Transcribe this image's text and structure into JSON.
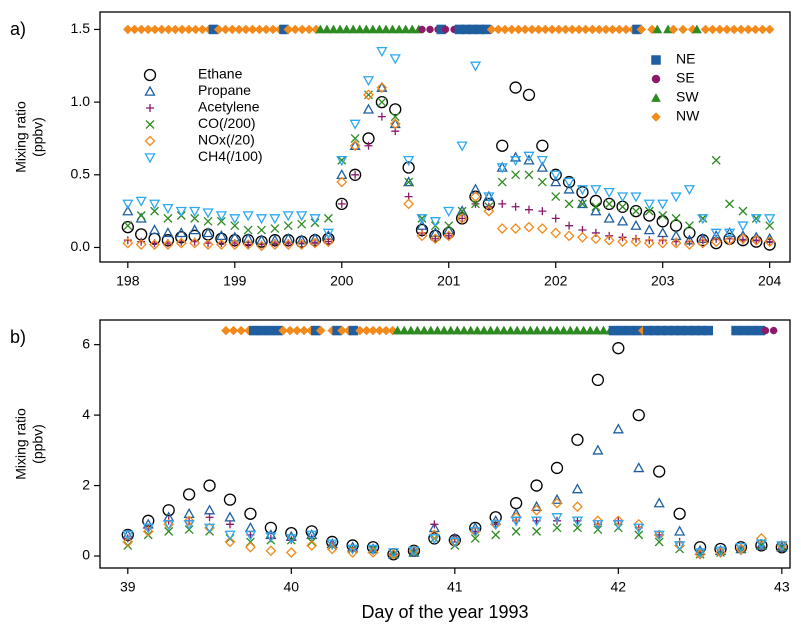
{
  "chart_data": [
    {
      "type": "scatter",
      "panel_label": "a)",
      "ylabel": [
        "Mixing ratio",
        "(ppbv)"
      ],
      "xlim": [
        197.74,
        204.19
      ],
      "xticks": [
        198,
        199,
        200,
        201,
        202,
        203,
        204
      ],
      "ylim": [
        -0.1,
        1.62
      ],
      "yticks": [
        {
          "value": 0,
          "label": "0.0"
        },
        {
          "value": 0.5,
          "label": "0.5"
        },
        {
          "value": 1,
          "label": "1.0"
        },
        {
          "value": 1.5,
          "label": "1.5"
        }
      ],
      "legend": "upper left",
      "wind_legend_position": "upper right",
      "x": [
        198,
        198.125,
        198.25,
        198.375,
        198.5,
        198.625,
        198.75,
        198.875,
        199,
        199.125,
        199.25,
        199.375,
        199.5,
        199.625,
        199.75,
        199.875,
        200,
        200.125,
        200.25,
        200.375,
        200.5,
        200.625,
        200.75,
        200.875,
        201,
        201.125,
        201.25,
        201.375,
        201.5,
        201.625,
        201.75,
        201.875,
        202,
        202.125,
        202.25,
        202.375,
        202.5,
        202.625,
        202.75,
        202.875,
        203,
        203.125,
        203.25,
        203.375,
        203.5,
        203.625,
        203.75,
        203.875,
        204
      ],
      "series": [
        {
          "name": "Ethane",
          "color": "#000000",
          "marker": "circle",
          "values": [
            0.14,
            0.09,
            0.06,
            0.05,
            0.07,
            0.08,
            0.09,
            0.06,
            0.05,
            0.05,
            0.04,
            0.05,
            0.05,
            0.04,
            0.05,
            0.06,
            0.3,
            0.5,
            0.75,
            1.0,
            0.95,
            0.55,
            0.12,
            0.08,
            0.1,
            0.2,
            0.35,
            0.3,
            0.7,
            1.1,
            1.05,
            0.7,
            0.5,
            0.45,
            0.38,
            0.32,
            0.3,
            0.28,
            0.25,
            0.22,
            0.18,
            0.15,
            0.1,
            0.05,
            0.03,
            0.06,
            0.05,
            0.04,
            0.02
          ]
        },
        {
          "name": "Propane",
          "color": "#1f5fa0",
          "marker": "triangle-up",
          "values": [
            0.25,
            0.2,
            0.12,
            0.1,
            0.1,
            0.12,
            0.1,
            0.08,
            0.07,
            0.06,
            0.05,
            0.05,
            0.06,
            0.05,
            0.06,
            0.08,
            0.5,
            0.7,
            0.95,
            1.1,
            0.85,
            0.45,
            0.15,
            0.1,
            0.12,
            0.25,
            0.4,
            0.35,
            0.55,
            0.62,
            0.6,
            0.55,
            0.45,
            0.4,
            0.3,
            0.25,
            0.2,
            0.18,
            0.15,
            0.12,
            0.1,
            0.08,
            0.05,
            0.06,
            0.08,
            0.1,
            0.08,
            0.07,
            0.06
          ]
        },
        {
          "name": "Acetylene",
          "color": "#8b1a6b",
          "marker": "plus",
          "values": [
            0.05,
            0.04,
            0.03,
            0.03,
            0.04,
            0.04,
            0.03,
            0.03,
            0.03,
            0.02,
            0.02,
            0.03,
            0.03,
            0.03,
            0.03,
            0.04,
            0.3,
            0.5,
            0.7,
            0.9,
            0.8,
            0.35,
            0.1,
            0.06,
            0.08,
            0.2,
            0.3,
            0.28,
            0.3,
            0.28,
            0.26,
            0.25,
            0.2,
            0.15,
            0.12,
            0.1,
            0.08,
            0.07,
            0.06,
            0.05,
            0.05,
            0.04,
            0.04,
            0.05,
            0.06,
            0.06,
            0.05,
            0.05,
            0.04
          ]
        },
        {
          "name": "CO(/200)",
          "color": "#2e8b22",
          "marker": "cross",
          "values": [
            0.15,
            0.22,
            0.25,
            0.2,
            0.22,
            0.2,
            0.18,
            0.18,
            0.15,
            0.12,
            0.12,
            0.13,
            0.15,
            0.16,
            0.17,
            0.2,
            0.6,
            0.75,
            1.05,
            1.0,
            0.9,
            0.45,
            0.2,
            0.15,
            0.15,
            0.25,
            0.3,
            0.28,
            0.45,
            0.5,
            0.5,
            0.45,
            0.35,
            0.3,
            0.3,
            0.28,
            0.3,
            0.28,
            0.25,
            0.25,
            0.22,
            0.2,
            0.15,
            0.2,
            0.6,
            0.3,
            0.25,
            0.2,
            0.15
          ]
        },
        {
          "name": "NOx(/20)",
          "color": "#f28a1c",
          "marker": "diamond",
          "values": [
            0.03,
            0.02,
            0.02,
            0.02,
            0.03,
            0.03,
            0.02,
            0.02,
            0.02,
            0.02,
            0.01,
            0.02,
            0.02,
            0.02,
            0.03,
            0.04,
            0.45,
            0.7,
            1.05,
            1.1,
            0.85,
            0.3,
            0.08,
            0.06,
            0.08,
            0.2,
            0.35,
            0.25,
            0.13,
            0.13,
            0.14,
            0.13,
            0.1,
            0.08,
            0.07,
            0.06,
            0.05,
            0.04,
            0.04,
            0.03,
            0.03,
            0.03,
            0.02,
            0.03,
            0.04,
            0.05,
            0.06,
            0.05,
            0.04
          ]
        },
        {
          "name": "CH4(/100)",
          "color": "#2ea8f0",
          "marker": "triangle-down",
          "values": [
            0.3,
            0.32,
            0.3,
            0.27,
            0.25,
            0.25,
            0.24,
            0.22,
            0.2,
            0.22,
            0.2,
            0.2,
            0.22,
            0.22,
            0.2,
            0.1,
            0.6,
            0.85,
            1.15,
            1.35,
            1.3,
            0.6,
            0.2,
            0.18,
            0.25,
            0.7,
            1.25,
            0.35,
            0.55,
            0.6,
            0.63,
            0.6,
            0.5,
            0.45,
            0.4,
            0.4,
            0.38,
            0.35,
            0.35,
            0.3,
            0.3,
            0.35,
            0.4,
            0.2,
            0.1,
            0.1,
            0.15,
            0.2,
            0.2
          ]
        }
      ],
      "wind_legend": [
        {
          "name": "NE",
          "color": "#1f5fa0",
          "marker": "square"
        },
        {
          "name": "SE",
          "color": "#8b1a6b",
          "marker": "dot"
        },
        {
          "name": "SW",
          "color": "#2e8b22",
          "marker": "triangle-up"
        },
        {
          "name": "NW",
          "color": "#f28a1c",
          "marker": "diamond"
        }
      ],
      "wind_y": 1.5,
      "wind": [
        {
          "direction": 3,
          "from": 198.0,
          "to": 198.76
        },
        {
          "direction": 0,
          "from": 198.8,
          "to": 198.8
        },
        {
          "direction": 3,
          "from": 198.85,
          "to": 199.42
        },
        {
          "direction": 0,
          "from": 199.46,
          "to": 199.46
        },
        {
          "direction": 3,
          "from": 199.5,
          "to": 199.76
        },
        {
          "direction": 2,
          "from": 199.8,
          "to": 200.72
        },
        {
          "direction": 1,
          "from": 200.75,
          "to": 200.9
        },
        {
          "direction": 0,
          "from": 200.93,
          "to": 200.93
        },
        {
          "direction": 1,
          "from": 200.97,
          "to": 201.05
        },
        {
          "direction": 0,
          "from": 201.1,
          "to": 201.35
        },
        {
          "direction": 3,
          "from": 201.4,
          "to": 202.72
        },
        {
          "direction": 0,
          "from": 202.76,
          "to": 202.76
        },
        {
          "direction": 3,
          "from": 202.8,
          "to": 202.9
        },
        {
          "direction": 2,
          "from": 202.95,
          "to": 203.05
        },
        {
          "direction": 3,
          "from": 203.1,
          "to": 203.28
        },
        {
          "direction": 2,
          "from": 203.32,
          "to": 203.35
        },
        {
          "direction": 3,
          "from": 203.4,
          "to": 204.0
        }
      ]
    },
    {
      "type": "scatter",
      "panel_label": "b)",
      "ylabel": [
        "Mixing ratio",
        "(ppbv)"
      ],
      "xlabel": "Day of the year 1993",
      "xlim": [
        38.83,
        43.05
      ],
      "xticks": [
        39,
        40,
        41,
        42,
        43
      ],
      "ylim": [
        -0.34,
        6.7
      ],
      "yticks": [
        0,
        2,
        4,
        6
      ],
      "x": [
        39,
        39.125,
        39.25,
        39.375,
        39.5,
        39.625,
        39.75,
        39.875,
        40,
        40.125,
        40.25,
        40.375,
        40.5,
        40.625,
        40.75,
        40.875,
        41,
        41.125,
        41.25,
        41.375,
        41.5,
        41.625,
        41.75,
        41.875,
        42,
        42.125,
        42.25,
        42.375,
        42.5,
        42.625,
        42.75,
        42.875,
        43
      ],
      "series": [
        {
          "color": "#000000",
          "marker": "circle",
          "values": [
            0.6,
            1.0,
            1.3,
            1.75,
            2.0,
            1.6,
            1.2,
            0.8,
            0.65,
            0.7,
            0.4,
            0.3,
            0.25,
            0.05,
            0.15,
            0.5,
            0.45,
            0.8,
            1.1,
            1.5,
            2.0,
            2.5,
            3.3,
            5.0,
            5.9,
            4.0,
            2.4,
            1.2,
            0.25,
            0.2,
            0.25,
            0.3,
            0.25
          ]
        },
        {
          "color": "#1f5fa0",
          "marker": "triangle-up",
          "values": [
            0.6,
            0.9,
            1.1,
            1.2,
            1.3,
            1.1,
            0.8,
            0.6,
            0.55,
            0.6,
            0.35,
            0.25,
            0.2,
            0.05,
            0.1,
            0.8,
            0.5,
            0.8,
            1.0,
            1.2,
            1.4,
            1.6,
            1.9,
            3.0,
            3.6,
            2.5,
            1.5,
            0.7,
            0.15,
            0.15,
            0.2,
            0.3,
            0.25
          ]
        },
        {
          "color": "#8b1a6b",
          "marker": "plus",
          "values": [
            0.5,
            0.8,
            1.0,
            1.0,
            1.1,
            0.9,
            0.6,
            0.5,
            0.45,
            0.5,
            0.3,
            0.2,
            0.15,
            0.05,
            0.1,
            0.9,
            0.5,
            0.7,
            0.9,
            1.0,
            1.0,
            1.0,
            1.0,
            0.9,
            1.0,
            0.8,
            0.6,
            0.4,
            0.1,
            0.1,
            0.15,
            0.25,
            0.2
          ]
        },
        {
          "color": "#2e8b22",
          "marker": "cross",
          "values": [
            0.3,
            0.6,
            0.7,
            0.75,
            0.7,
            0.5,
            0.4,
            0.45,
            0.45,
            0.4,
            0.3,
            0.2,
            0.2,
            0.05,
            0.1,
            0.5,
            0.3,
            0.5,
            0.6,
            0.7,
            0.7,
            0.8,
            0.8,
            0.75,
            0.8,
            0.6,
            0.4,
            0.2,
            0.05,
            0.1,
            0.2,
            0.3,
            0.25
          ]
        },
        {
          "color": "#f28a1c",
          "marker": "diamond",
          "values": [
            0.4,
            0.7,
            0.9,
            1.0,
            0.8,
            0.4,
            0.25,
            0.15,
            0.1,
            0.3,
            0.2,
            0.1,
            0.1,
            0.05,
            0.15,
            0.6,
            0.4,
            0.7,
            0.9,
            1.1,
            1.3,
            1.5,
            1.4,
            1.0,
            1.0,
            0.9,
            0.6,
            0.3,
            0.05,
            0.1,
            0.2,
            0.5,
            0.3
          ]
        },
        {
          "color": "#2ea8f0",
          "marker": "triangle-down",
          "values": [
            0.6,
            0.8,
            0.9,
            0.9,
            0.8,
            0.6,
            0.6,
            0.55,
            0.5,
            0.6,
            0.35,
            0.2,
            0.2,
            0.1,
            0.15,
            0.5,
            0.4,
            0.7,
            0.9,
            1.0,
            1.0,
            1.1,
            1.0,
            0.9,
            0.9,
            0.8,
            0.6,
            0.3,
            0.1,
            0.15,
            0.25,
            0.35,
            0.3
          ]
        }
      ],
      "wind_colors": [
        "#1f5fa0",
        "#8b1a6b",
        "#2e8b22",
        "#f28a1c"
      ],
      "wind_markers": [
        "square",
        "dot",
        "triangle-up",
        "diamond"
      ],
      "wind_y": 6.4,
      "wind": [
        {
          "direction": 3,
          "from": 39.6,
          "to": 39.74
        },
        {
          "direction": 0,
          "from": 39.77,
          "to": 39.92
        },
        {
          "direction": 3,
          "from": 39.95,
          "to": 40.12
        },
        {
          "direction": 0,
          "from": 40.15,
          "to": 40.15
        },
        {
          "direction": 3,
          "from": 40.18,
          "to": 40.25
        },
        {
          "direction": 0,
          "from": 40.28,
          "to": 40.28
        },
        {
          "direction": 3,
          "from": 40.31,
          "to": 40.35
        },
        {
          "direction": 0,
          "from": 40.38,
          "to": 40.38
        },
        {
          "direction": 3,
          "from": 40.42,
          "to": 40.62
        },
        {
          "direction": 2,
          "from": 40.65,
          "to": 41.95
        },
        {
          "direction": 0,
          "from": 41.97,
          "to": 42.12
        },
        {
          "direction": 3,
          "from": 42.15,
          "to": 42.15
        },
        {
          "direction": 0,
          "from": 42.18,
          "to": 42.55
        },
        {
          "direction": 0,
          "from": 42.72,
          "to": 42.87
        },
        {
          "direction": 1,
          "from": 42.9,
          "to": 42.95
        }
      ]
    }
  ]
}
